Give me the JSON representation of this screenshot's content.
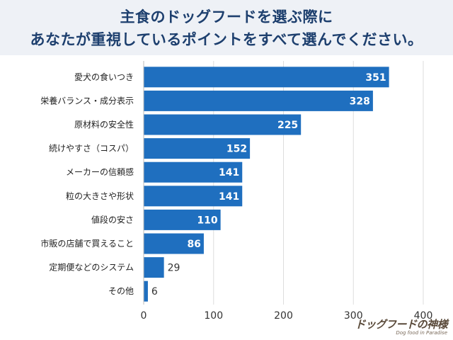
{
  "title": {
    "line1": "主食のドッグフードを選ぶ際に",
    "line2": "あなたが重視しているポイントをすべて選んでください。"
  },
  "watermark": {
    "main": "ドッグフードの神様",
    "sub": "Dog food in Paradise"
  },
  "colors": {
    "bar": "#1f6fbf",
    "title_bg": "#eef1f6",
    "title_text": "#1d3f6e",
    "grid": "#dddddd"
  },
  "chart_data": {
    "type": "bar",
    "orientation": "horizontal",
    "categories": [
      "愛犬の食いつき",
      "栄養バランス・成分表示",
      "原材料の安全性",
      "続けやすさ（コスパ）",
      "メーカーの信頼感",
      "粒の大きさや形状",
      "値段の安さ",
      "市販の店舗で買えること",
      "定期便などのシステム",
      "その他"
    ],
    "values": [
      351,
      328,
      225,
      152,
      141,
      141,
      110,
      86,
      29,
      6
    ],
    "xlim": [
      0,
      400
    ],
    "xticks": [
      0,
      100,
      200,
      300,
      400
    ],
    "grid": true,
    "legend": "none",
    "xlabel": "",
    "ylabel": ""
  }
}
